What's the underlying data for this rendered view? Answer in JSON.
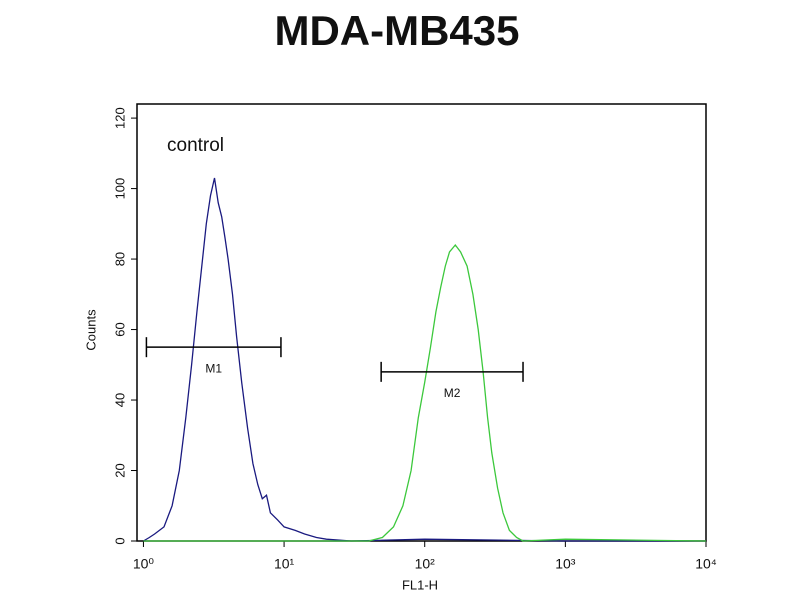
{
  "chart_data": {
    "type": "histogram-overlay",
    "title": "MDA-MB435",
    "x_label": "FL1-H",
    "y_label": "Counts",
    "annotation": "control",
    "x_scale": "log",
    "xlim": [
      0.9,
      10000
    ],
    "ylim": [
      0,
      124
    ],
    "xticks": [
      {
        "value": 1,
        "label": "10⁰"
      },
      {
        "value": 10,
        "label": "10¹"
      },
      {
        "value": 100,
        "label": "10²"
      },
      {
        "value": 1000,
        "label": "10³"
      },
      {
        "value": 10000,
        "label": "10⁴"
      }
    ],
    "yticks": [
      0,
      20,
      40,
      60,
      80,
      100,
      120
    ],
    "series": [
      {
        "name": "control",
        "color": "#1a1a80",
        "x": [
          1.0,
          1.1,
          1.2,
          1.4,
          1.6,
          1.8,
          2.0,
          2.2,
          2.4,
          2.6,
          2.8,
          3.0,
          3.2,
          3.4,
          3.6,
          3.8,
          4.0,
          4.3,
          4.6,
          5.0,
          5.5,
          6.0,
          6.5,
          7.0,
          7.5,
          8.0,
          9.0,
          10,
          12,
          14,
          17,
          20,
          30,
          100,
          1000,
          10000
        ],
        "y": [
          0,
          1,
          2,
          4,
          10,
          20,
          35,
          50,
          65,
          78,
          90,
          98,
          103,
          96,
          92,
          86,
          80,
          70,
          58,
          45,
          32,
          22,
          16,
          12,
          13,
          8,
          6,
          4,
          3,
          2,
          1,
          0.5,
          0,
          0.5,
          0,
          0
        ]
      },
      {
        "color": "#3cc83c",
        "x": [
          1,
          40,
          50,
          60,
          70,
          80,
          90,
          100,
          110,
          120,
          130,
          140,
          150,
          165,
          180,
          200,
          220,
          240,
          260,
          280,
          300,
          330,
          360,
          400,
          450,
          500,
          1000,
          10000
        ],
        "y": [
          0,
          0,
          1,
          4,
          10,
          20,
          35,
          45,
          55,
          65,
          72,
          78,
          82,
          84,
          82,
          78,
          70,
          60,
          48,
          35,
          25,
          15,
          8,
          3,
          1,
          0,
          0.5,
          0
        ]
      }
    ],
    "markers": [
      {
        "label": "M1",
        "range": [
          1.05,
          9.5
        ],
        "y": 55
      },
      {
        "label": "M2",
        "range": [
          49,
          500
        ],
        "y": 48
      }
    ]
  }
}
